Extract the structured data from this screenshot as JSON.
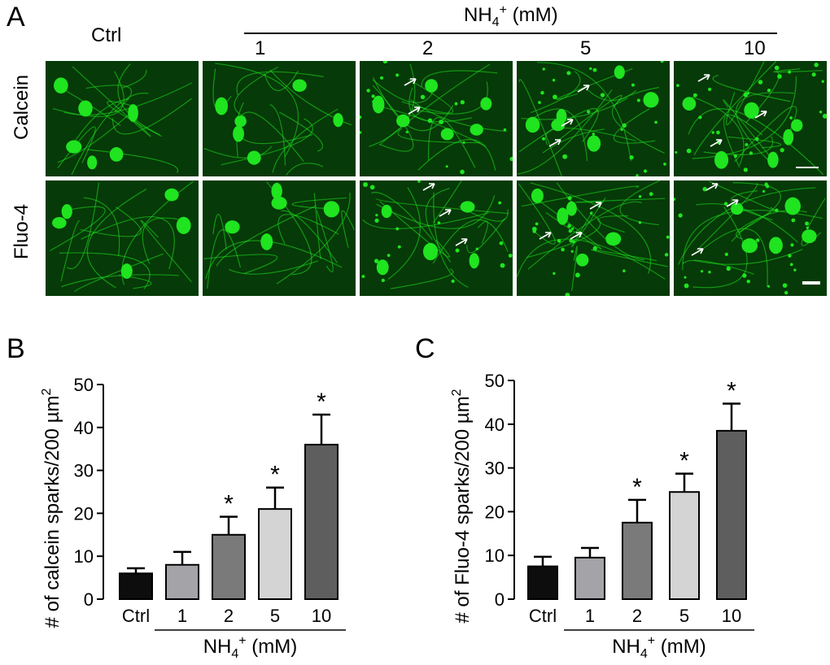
{
  "figure": {
    "panel_a": {
      "letter": "A",
      "ctrl_label": "Ctrl",
      "nh4_group_label": "NH4+ (mM)",
      "nh4_main": "NH",
      "nh4_sub": "4",
      "nh4_sup": "+",
      "nh4_unit": " (mM)",
      "concentrations": [
        "1",
        "2",
        "5",
        "10"
      ],
      "row_labels": [
        "Calcein",
        "Fluo-4"
      ],
      "image_colors": {
        "background": "#063a08",
        "signal": "#1fe41f",
        "arrow": "#ffffff"
      }
    },
    "panel_b": {
      "letter": "B"
    },
    "panel_c": {
      "letter": "C"
    }
  },
  "chart_data": [
    {
      "type": "bar",
      "panel": "B",
      "categories": [
        "Ctrl",
        "1",
        "2",
        "5",
        "10"
      ],
      "values": [
        6,
        8,
        15,
        21,
        36
      ],
      "errors": [
        1.2,
        3,
        4.2,
        5,
        7
      ],
      "significant": [
        false,
        false,
        true,
        true,
        true
      ],
      "significance_marker": "*",
      "ylabel": "# of calcein sparks/200 µm2",
      "ylabel_main": "# of calcein sparks/200 µm",
      "ylabel_sup": "2",
      "xlabel": "NH4+ (mM)",
      "xlabel_main": "NH",
      "xlabel_sub": "4",
      "xlabel_sup": "+",
      "xlabel_unit": "  (mM)",
      "ylim": [
        0,
        50
      ],
      "yticks": [
        0,
        10,
        20,
        30,
        40,
        50
      ],
      "bar_colors": [
        "#0d0d0d",
        "#a3a3a8",
        "#7a7a7a",
        "#d4d4d4",
        "#5e5e5e"
      ]
    },
    {
      "type": "bar",
      "panel": "C",
      "categories": [
        "Ctrl",
        "1",
        "2",
        "5",
        "10"
      ],
      "values": [
        7.5,
        9.5,
        17.5,
        24.5,
        38.5
      ],
      "errors": [
        2.2,
        2.2,
        5.2,
        4.2,
        6.2
      ],
      "significant": [
        false,
        false,
        true,
        true,
        true
      ],
      "significance_marker": "*",
      "ylabel": "# of Fluo-4 sparks/200 µm2",
      "ylabel_main": "# of Fluo-4 sparks/200 µm",
      "ylabel_sup": "2",
      "xlabel": "NH4+ (mM)",
      "xlabel_main": "NH",
      "xlabel_sub": "4",
      "xlabel_sup": "+",
      "xlabel_unit": "  (mM)",
      "ylim": [
        0,
        50
      ],
      "yticks": [
        0,
        10,
        20,
        30,
        40,
        50
      ],
      "bar_colors": [
        "#0d0d0d",
        "#a3a3a8",
        "#7a7a7a",
        "#d4d4d4",
        "#5e5e5e"
      ]
    }
  ]
}
